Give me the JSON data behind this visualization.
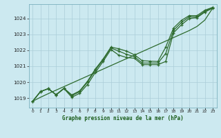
{
  "title": "Graphe pression niveau de la mer (hPa)",
  "bg_color": "#cce9f0",
  "grid_color": "#aacdd8",
  "line_color": "#2d6a2d",
  "ylim": [
    1018.4,
    1024.9
  ],
  "xlim": [
    -0.5,
    23.5
  ],
  "yticks": [
    1019,
    1020,
    1021,
    1022,
    1023,
    1024
  ],
  "xticks": [
    0,
    1,
    2,
    3,
    4,
    5,
    6,
    7,
    8,
    9,
    10,
    11,
    12,
    13,
    14,
    15,
    16,
    17,
    18,
    19,
    20,
    21,
    22,
    23
  ],
  "series_wavy": [
    1018.8,
    1019.4,
    1019.6,
    1019.2,
    1019.6,
    1019.05,
    1019.3,
    1019.85,
    1020.6,
    1021.3,
    1022.05,
    1021.7,
    1021.55,
    1021.5,
    1021.1,
    1021.1,
    1021.1,
    1021.3,
    1023.1,
    1023.6,
    1024.0,
    1024.05,
    1024.4,
    1024.65
  ],
  "series_mid1": [
    1018.8,
    1019.4,
    1019.6,
    1019.2,
    1019.6,
    1019.15,
    1019.4,
    1020.0,
    1020.75,
    1021.4,
    1022.15,
    1021.95,
    1021.75,
    1021.6,
    1021.2,
    1021.2,
    1021.2,
    1021.8,
    1023.25,
    1023.75,
    1024.1,
    1024.1,
    1024.45,
    1024.68
  ],
  "series_mid2": [
    1018.8,
    1019.42,
    1019.58,
    1019.22,
    1019.62,
    1019.2,
    1019.45,
    1020.05,
    1020.82,
    1021.45,
    1022.2,
    1022.1,
    1021.95,
    1021.72,
    1021.35,
    1021.32,
    1021.3,
    1022.2,
    1023.4,
    1023.88,
    1024.18,
    1024.18,
    1024.52,
    1024.7
  ],
  "series_straight": [
    1018.8,
    1019.05,
    1019.28,
    1019.5,
    1019.72,
    1019.94,
    1020.16,
    1020.38,
    1020.6,
    1020.82,
    1021.04,
    1021.26,
    1021.48,
    1021.7,
    1021.92,
    1022.14,
    1022.36,
    1022.58,
    1022.8,
    1023.02,
    1023.24,
    1023.5,
    1023.9,
    1024.65
  ]
}
